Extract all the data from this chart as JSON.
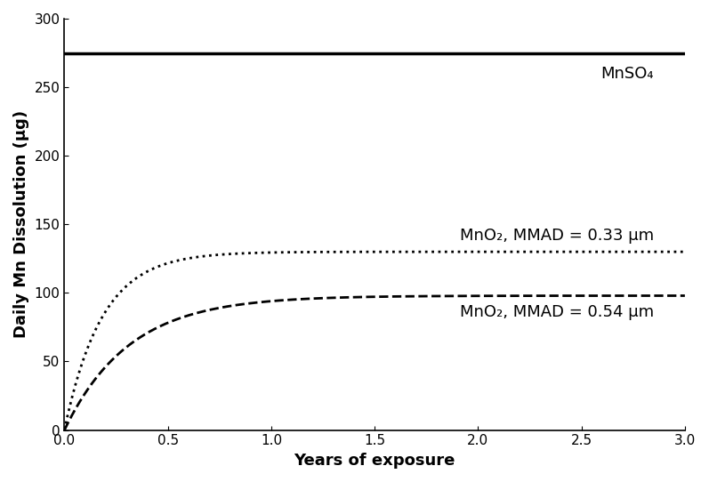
{
  "title": "",
  "xlabel": "Years of exposure",
  "ylabel": "Daily Mn Dissolution (μg)",
  "xlim": [
    0,
    3
  ],
  "ylim": [
    0,
    300
  ],
  "xticks": [
    0,
    0.5,
    1.0,
    1.5,
    2.0,
    2.5,
    3.0
  ],
  "yticks": [
    0,
    50,
    100,
    150,
    200,
    250,
    300
  ],
  "mnso4_value": 275,
  "mnso4_label": "MnSO₄",
  "curve1_asymptote": 130,
  "curve1_rate": 5.5,
  "curve1_label": "MnO₂, MMAD = 0.33 μm",
  "curve1_linestyle": "dotted",
  "curve2_asymptote": 98,
  "curve2_rate": 3.2,
  "curve2_label": "MnO₂, MMAD = 0.54 μm",
  "curve2_linestyle": "dashed",
  "line_color": "#000000",
  "background_color": "#ffffff",
  "label_fontsize": 13,
  "tick_fontsize": 11,
  "linewidth_solid": 2.5,
  "linewidth_curves": 2.0
}
